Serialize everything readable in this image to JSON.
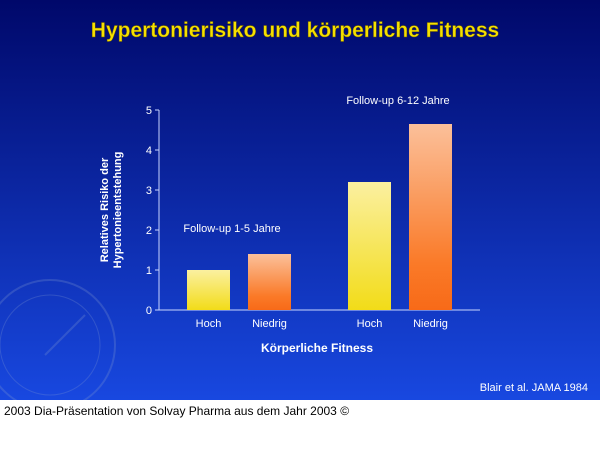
{
  "slide": {
    "title": "Hypertonierisiko und körperliche Fitness",
    "source": "Blair et al. JAMA 1984"
  },
  "caption": "2003 Dia-Präsentation von Solvay Pharma aus dem Jahr 2003 ©",
  "colors": {
    "title": "#f5e000",
    "background_top": "#00086a",
    "background_bottom": "#1848e0",
    "bar_hoch": "#f5e030",
    "bar_niedrig": "#f87020"
  },
  "chart_data": {
    "type": "bar",
    "title": "Hypertonierisiko und körperliche Fitness",
    "xlabel": "Körperliche Fitness",
    "ylabel_lines": [
      "Relatives Risiko der",
      "Hypertonieentstehung"
    ],
    "ylim": [
      0,
      5
    ],
    "yticks": [
      0,
      1,
      2,
      3,
      4,
      5
    ],
    "grid": false,
    "groups": [
      {
        "label": "Follow-up 1-5 Jahre",
        "categories": [
          "Hoch",
          "Niedrig"
        ],
        "values": [
          1.0,
          1.4
        ]
      },
      {
        "label": "Follow-up 6-12 Jahre",
        "categories": [
          "Hoch",
          "Niedrig"
        ],
        "values": [
          3.2,
          4.65
        ]
      }
    ]
  }
}
